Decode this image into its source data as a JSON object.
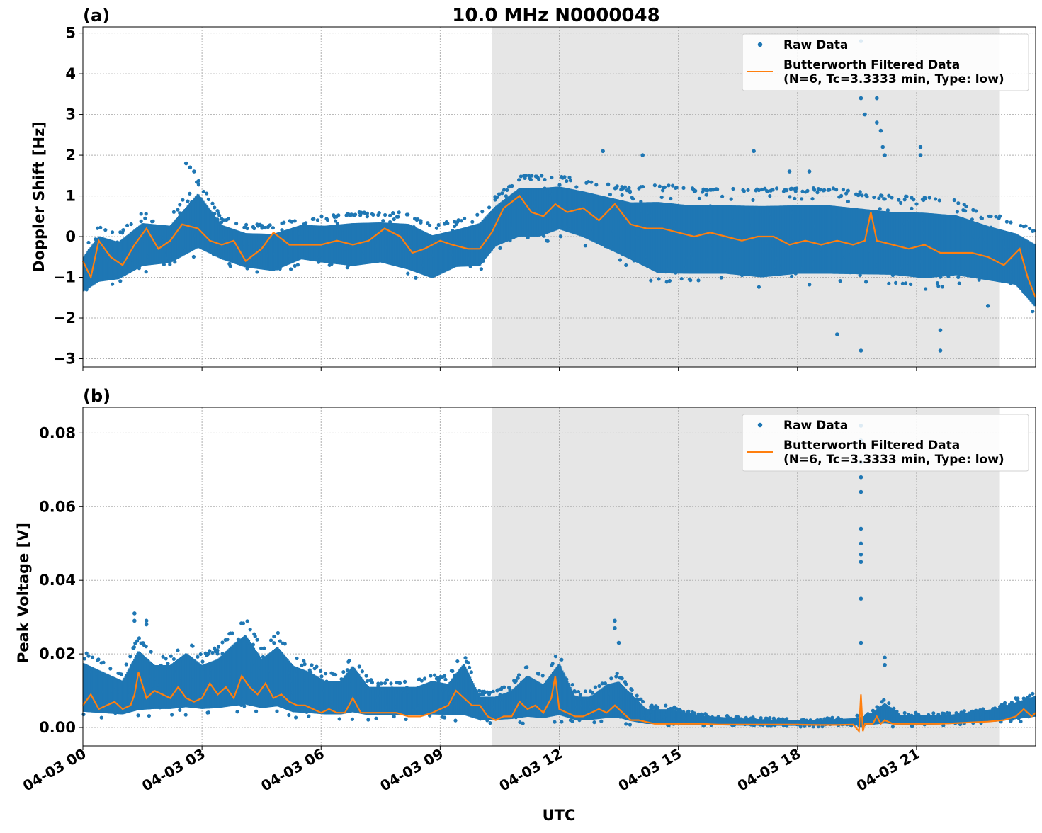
{
  "title": "10.0 MHz N0000048",
  "xlabel": "UTC",
  "x_tick_labels": [
    "04-03 00",
    "04-03 03",
    "04-03 06",
    "04-03 09",
    "04-03 12",
    "04-03 15",
    "04-03 18",
    "04-03 21"
  ],
  "legend": {
    "raw": "Raw Data",
    "filtered_line1": "Butterworth Filtered Data",
    "filtered_line2": "(N=6, Tc=3.3333 min, Type: low)"
  },
  "colors": {
    "raw": "#1f77b4",
    "filtered": "#ff7f0e",
    "shade": "#e6e6e6"
  },
  "chart_data": [
    {
      "type": "scatter",
      "panel_label": "(a)",
      "ylabel": "Doppler Shift [Hz]",
      "x_unit": "hours UTC since 04-03 00:00",
      "xlim": [
        0,
        24
      ],
      "ylim": [
        -3.2,
        5.15
      ],
      "y_ticks": [
        5,
        4,
        3,
        2,
        1,
        0,
        -1,
        -2,
        -3
      ],
      "y_tick_labels": [
        "5",
        "4",
        "3",
        "2",
        "1",
        "0",
        "−1",
        "−2",
        "−3"
      ],
      "shaded_region_x": [
        10.3,
        23.1
      ],
      "legend_position": "upper right",
      "grid": true,
      "series": [
        {
          "name": "Raw Data",
          "kind": "scatter-envelope",
          "x": [
            0.0,
            0.4,
            0.9,
            1.5,
            2.2,
            2.9,
            3.5,
            4.1,
            4.8,
            5.5,
            6.1,
            6.8,
            7.5,
            8.2,
            8.8,
            9.4,
            10.0,
            10.4,
            11.0,
            11.5,
            12.0,
            12.6,
            13.2,
            13.8,
            14.5,
            15.3,
            16.2,
            17.1,
            18.0,
            18.8,
            19.6,
            20.4,
            21.2,
            22.0,
            22.8,
            23.5,
            24.0
          ],
          "low": [
            -1.5,
            -1.3,
            -1.2,
            -0.9,
            -0.8,
            -0.5,
            -0.7,
            -0.9,
            -1.0,
            -0.7,
            -0.8,
            -0.9,
            -0.8,
            -1.0,
            -1.2,
            -0.9,
            -0.9,
            -0.4,
            -0.2,
            -0.2,
            0.0,
            -0.2,
            -0.5,
            -0.8,
            -1.2,
            -1.2,
            -1.2,
            -1.3,
            -1.2,
            -1.2,
            -1.2,
            -1.2,
            -1.3,
            -1.2,
            -1.3,
            -1.4,
            -2.0
          ],
          "high": [
            -0.3,
            0.3,
            0.1,
            0.6,
            0.5,
            1.4,
            0.5,
            0.3,
            0.3,
            0.5,
            0.5,
            0.6,
            0.6,
            0.6,
            0.3,
            0.4,
            0.6,
            1.0,
            1.5,
            1.5,
            1.5,
            1.4,
            1.3,
            1.2,
            1.3,
            1.2,
            1.2,
            1.2,
            1.2,
            1.2,
            1.1,
            1.0,
            1.0,
            0.9,
            0.6,
            0.4,
            0.2
          ]
        },
        {
          "name": "Butterworth Filtered Data (N=6, Tc=3.3333 min, Type: low)",
          "kind": "line",
          "x": [
            0.0,
            0.2,
            0.4,
            0.7,
            1.0,
            1.3,
            1.6,
            1.9,
            2.2,
            2.5,
            2.9,
            3.2,
            3.5,
            3.8,
            4.1,
            4.5,
            4.8,
            5.2,
            5.6,
            6.0,
            6.4,
            6.8,
            7.2,
            7.6,
            8.0,
            8.3,
            8.6,
            9.0,
            9.3,
            9.7,
            10.0,
            10.3,
            10.6,
            11.0,
            11.3,
            11.6,
            11.9,
            12.2,
            12.6,
            13.0,
            13.4,
            13.8,
            14.2,
            14.6,
            15.0,
            15.4,
            15.8,
            16.2,
            16.6,
            17.0,
            17.4,
            17.8,
            18.2,
            18.6,
            19.0,
            19.4,
            19.7,
            19.85,
            20.0,
            20.4,
            20.8,
            21.2,
            21.6,
            22.0,
            22.4,
            22.8,
            23.2,
            23.4,
            23.6,
            23.8,
            24.0
          ],
          "y": [
            -0.6,
            -1.0,
            -0.1,
            -0.5,
            -0.7,
            -0.2,
            0.2,
            -0.3,
            -0.1,
            0.3,
            0.2,
            -0.1,
            -0.2,
            -0.1,
            -0.6,
            -0.3,
            0.1,
            -0.2,
            -0.2,
            -0.2,
            -0.1,
            -0.2,
            -0.1,
            0.2,
            0.0,
            -0.4,
            -0.3,
            -0.1,
            -0.2,
            -0.3,
            -0.3,
            0.1,
            0.7,
            1.0,
            0.6,
            0.5,
            0.8,
            0.6,
            0.7,
            0.4,
            0.8,
            0.3,
            0.2,
            0.2,
            0.1,
            0.0,
            0.1,
            0.0,
            -0.1,
            0.0,
            0.0,
            -0.2,
            -0.1,
            -0.2,
            -0.1,
            -0.2,
            -0.1,
            0.6,
            -0.1,
            -0.2,
            -0.3,
            -0.2,
            -0.4,
            -0.4,
            -0.4,
            -0.5,
            -0.7,
            -0.5,
            -0.3,
            -1.0,
            -1.5
          ]
        }
      ],
      "raw_outliers": {
        "x": [
          2.6,
          2.7,
          2.8,
          13.1,
          14.1,
          16.9,
          17.8,
          18.3,
          19.0,
          19.6,
          19.6,
          19.6,
          19.7,
          20.0,
          20.0,
          20.1,
          20.15,
          20.2,
          21.1,
          21.1,
          21.6,
          21.6,
          22.8
        ],
        "y": [
          1.8,
          1.7,
          1.6,
          2.1,
          2.0,
          2.1,
          1.6,
          1.6,
          -2.4,
          4.8,
          3.4,
          -2.8,
          3.0,
          3.4,
          2.8,
          2.6,
          2.2,
          2.0,
          2.2,
          2.0,
          -2.3,
          -2.8,
          -1.7
        ]
      }
    },
    {
      "type": "scatter",
      "panel_label": "(b)",
      "ylabel": "Peak Voltage [V]",
      "x_unit": "hours UTC since 04-03 00:00",
      "xlim": [
        0,
        24
      ],
      "ylim": [
        -0.005,
        0.087
      ],
      "y_ticks": [
        0.08,
        0.06,
        0.04,
        0.02,
        0.0
      ],
      "y_tick_labels": [
        "0.08",
        "0.06",
        "0.04",
        "0.02",
        "0.00"
      ],
      "shaded_region_x": [
        10.3,
        23.1
      ],
      "legend_position": "upper right",
      "grid": true,
      "series": [
        {
          "name": "Raw Data",
          "kind": "scatter-envelope",
          "x": [
            0.0,
            0.5,
            1.0,
            1.4,
            1.8,
            2.2,
            2.6,
            3.0,
            3.4,
            3.8,
            4.1,
            4.5,
            4.9,
            5.3,
            5.7,
            6.1,
            6.5,
            6.8,
            7.2,
            7.6,
            8.0,
            8.4,
            8.8,
            9.2,
            9.6,
            10.0,
            10.4,
            10.8,
            11.2,
            11.6,
            12.0,
            12.4,
            12.8,
            13.2,
            13.5,
            13.8,
            14.2,
            14.8,
            15.5,
            16.5,
            17.5,
            18.5,
            19.4,
            19.8,
            20.2,
            20.6,
            21.2,
            21.8,
            22.4,
            23.0,
            23.5,
            24.0
          ],
          "low": [
            0.002,
            0.002,
            0.002,
            0.002,
            0.003,
            0.003,
            0.003,
            0.003,
            0.003,
            0.003,
            0.003,
            0.003,
            0.003,
            0.002,
            0.002,
            0.002,
            0.002,
            0.002,
            0.002,
            0.002,
            0.002,
            0.002,
            0.002,
            0.002,
            0.001,
            0.001,
            0.001,
            0.001,
            0.001,
            0.001,
            0.001,
            0.001,
            0.001,
            0.001,
            0.001,
            0.0005,
            0.0003,
            0.0002,
            0.0002,
            0.0002,
            0.0002,
            0.0002,
            0.0002,
            0.0002,
            0.0002,
            0.0002,
            0.0003,
            0.0005,
            0.0008,
            0.001,
            0.0015,
            0.002
          ],
          "high": [
            0.021,
            0.018,
            0.015,
            0.025,
            0.02,
            0.02,
            0.024,
            0.02,
            0.022,
            0.027,
            0.03,
            0.022,
            0.026,
            0.02,
            0.018,
            0.015,
            0.015,
            0.02,
            0.013,
            0.013,
            0.013,
            0.013,
            0.015,
            0.014,
            0.021,
            0.01,
            0.01,
            0.012,
            0.017,
            0.014,
            0.021,
            0.01,
            0.01,
            0.014,
            0.015,
            0.011,
            0.006,
            0.006,
            0.004,
            0.003,
            0.0025,
            0.0025,
            0.003,
            0.004,
            0.008,
            0.004,
            0.004,
            0.004,
            0.005,
            0.006,
            0.008,
            0.01
          ]
        },
        {
          "name": "Butterworth Filtered Data (N=6, Tc=3.3333 min, Type: low)",
          "kind": "line",
          "x": [
            0.0,
            0.2,
            0.4,
            0.6,
            0.8,
            1.0,
            1.2,
            1.3,
            1.4,
            1.6,
            1.8,
            2.0,
            2.2,
            2.4,
            2.6,
            2.8,
            3.0,
            3.2,
            3.4,
            3.6,
            3.8,
            4.0,
            4.2,
            4.4,
            4.6,
            4.8,
            5.0,
            5.2,
            5.4,
            5.6,
            5.8,
            6.0,
            6.2,
            6.4,
            6.6,
            6.8,
            7.0,
            7.3,
            7.6,
            7.9,
            8.2,
            8.5,
            8.8,
            9.0,
            9.2,
            9.4,
            9.6,
            9.8,
            10.0,
            10.2,
            10.4,
            10.6,
            10.8,
            11.0,
            11.2,
            11.4,
            11.6,
            11.8,
            11.9,
            12.0,
            12.2,
            12.4,
            12.6,
            12.8,
            13.0,
            13.2,
            13.4,
            13.6,
            13.8,
            14.0,
            14.4,
            14.8,
            15.2,
            15.6,
            16.0,
            16.5,
            17.0,
            17.5,
            18.0,
            18.5,
            19.0,
            19.4,
            19.55,
            19.6,
            19.65,
            19.7,
            19.9,
            20.0,
            20.1,
            20.2,
            20.4,
            20.8,
            21.2,
            21.6,
            22.0,
            22.4,
            22.8,
            23.2,
            23.5,
            23.7,
            23.9,
            24.0
          ],
          "y": [
            0.006,
            0.009,
            0.005,
            0.006,
            0.007,
            0.005,
            0.006,
            0.009,
            0.015,
            0.008,
            0.01,
            0.009,
            0.008,
            0.011,
            0.008,
            0.007,
            0.008,
            0.012,
            0.009,
            0.011,
            0.008,
            0.014,
            0.011,
            0.009,
            0.012,
            0.008,
            0.009,
            0.007,
            0.006,
            0.006,
            0.005,
            0.004,
            0.005,
            0.004,
            0.004,
            0.008,
            0.004,
            0.004,
            0.004,
            0.004,
            0.003,
            0.003,
            0.004,
            0.005,
            0.006,
            0.01,
            0.008,
            0.006,
            0.006,
            0.003,
            0.002,
            0.003,
            0.003,
            0.007,
            0.005,
            0.006,
            0.004,
            0.008,
            0.014,
            0.005,
            0.004,
            0.003,
            0.003,
            0.004,
            0.005,
            0.004,
            0.006,
            0.004,
            0.002,
            0.002,
            0.001,
            0.001,
            0.001,
            0.001,
            0.0008,
            0.0008,
            0.0008,
            0.0008,
            0.0008,
            0.0007,
            0.0007,
            0.0008,
            -0.001,
            0.009,
            -0.001,
            0.001,
            0.001,
            0.003,
            0.001,
            0.002,
            0.001,
            0.001,
            0.001,
            0.001,
            0.0012,
            0.0014,
            0.0016,
            0.002,
            0.003,
            0.005,
            0.003,
            0.004
          ]
        }
      ],
      "raw_outliers": {
        "x": [
          1.3,
          1.3,
          1.6,
          1.6,
          13.4,
          13.4,
          13.5,
          19.6,
          19.6,
          19.6,
          19.6,
          19.6,
          19.6,
          19.6,
          19.6,
          19.6,
          19.6,
          19.6,
          20.2,
          20.2
        ],
        "y": [
          0.031,
          0.029,
          0.029,
          0.028,
          0.029,
          0.027,
          0.023,
          0.082,
          0.078,
          0.072,
          0.068,
          0.064,
          0.054,
          0.05,
          0.047,
          0.045,
          0.035,
          0.023,
          0.019,
          0.017
        ]
      }
    }
  ]
}
